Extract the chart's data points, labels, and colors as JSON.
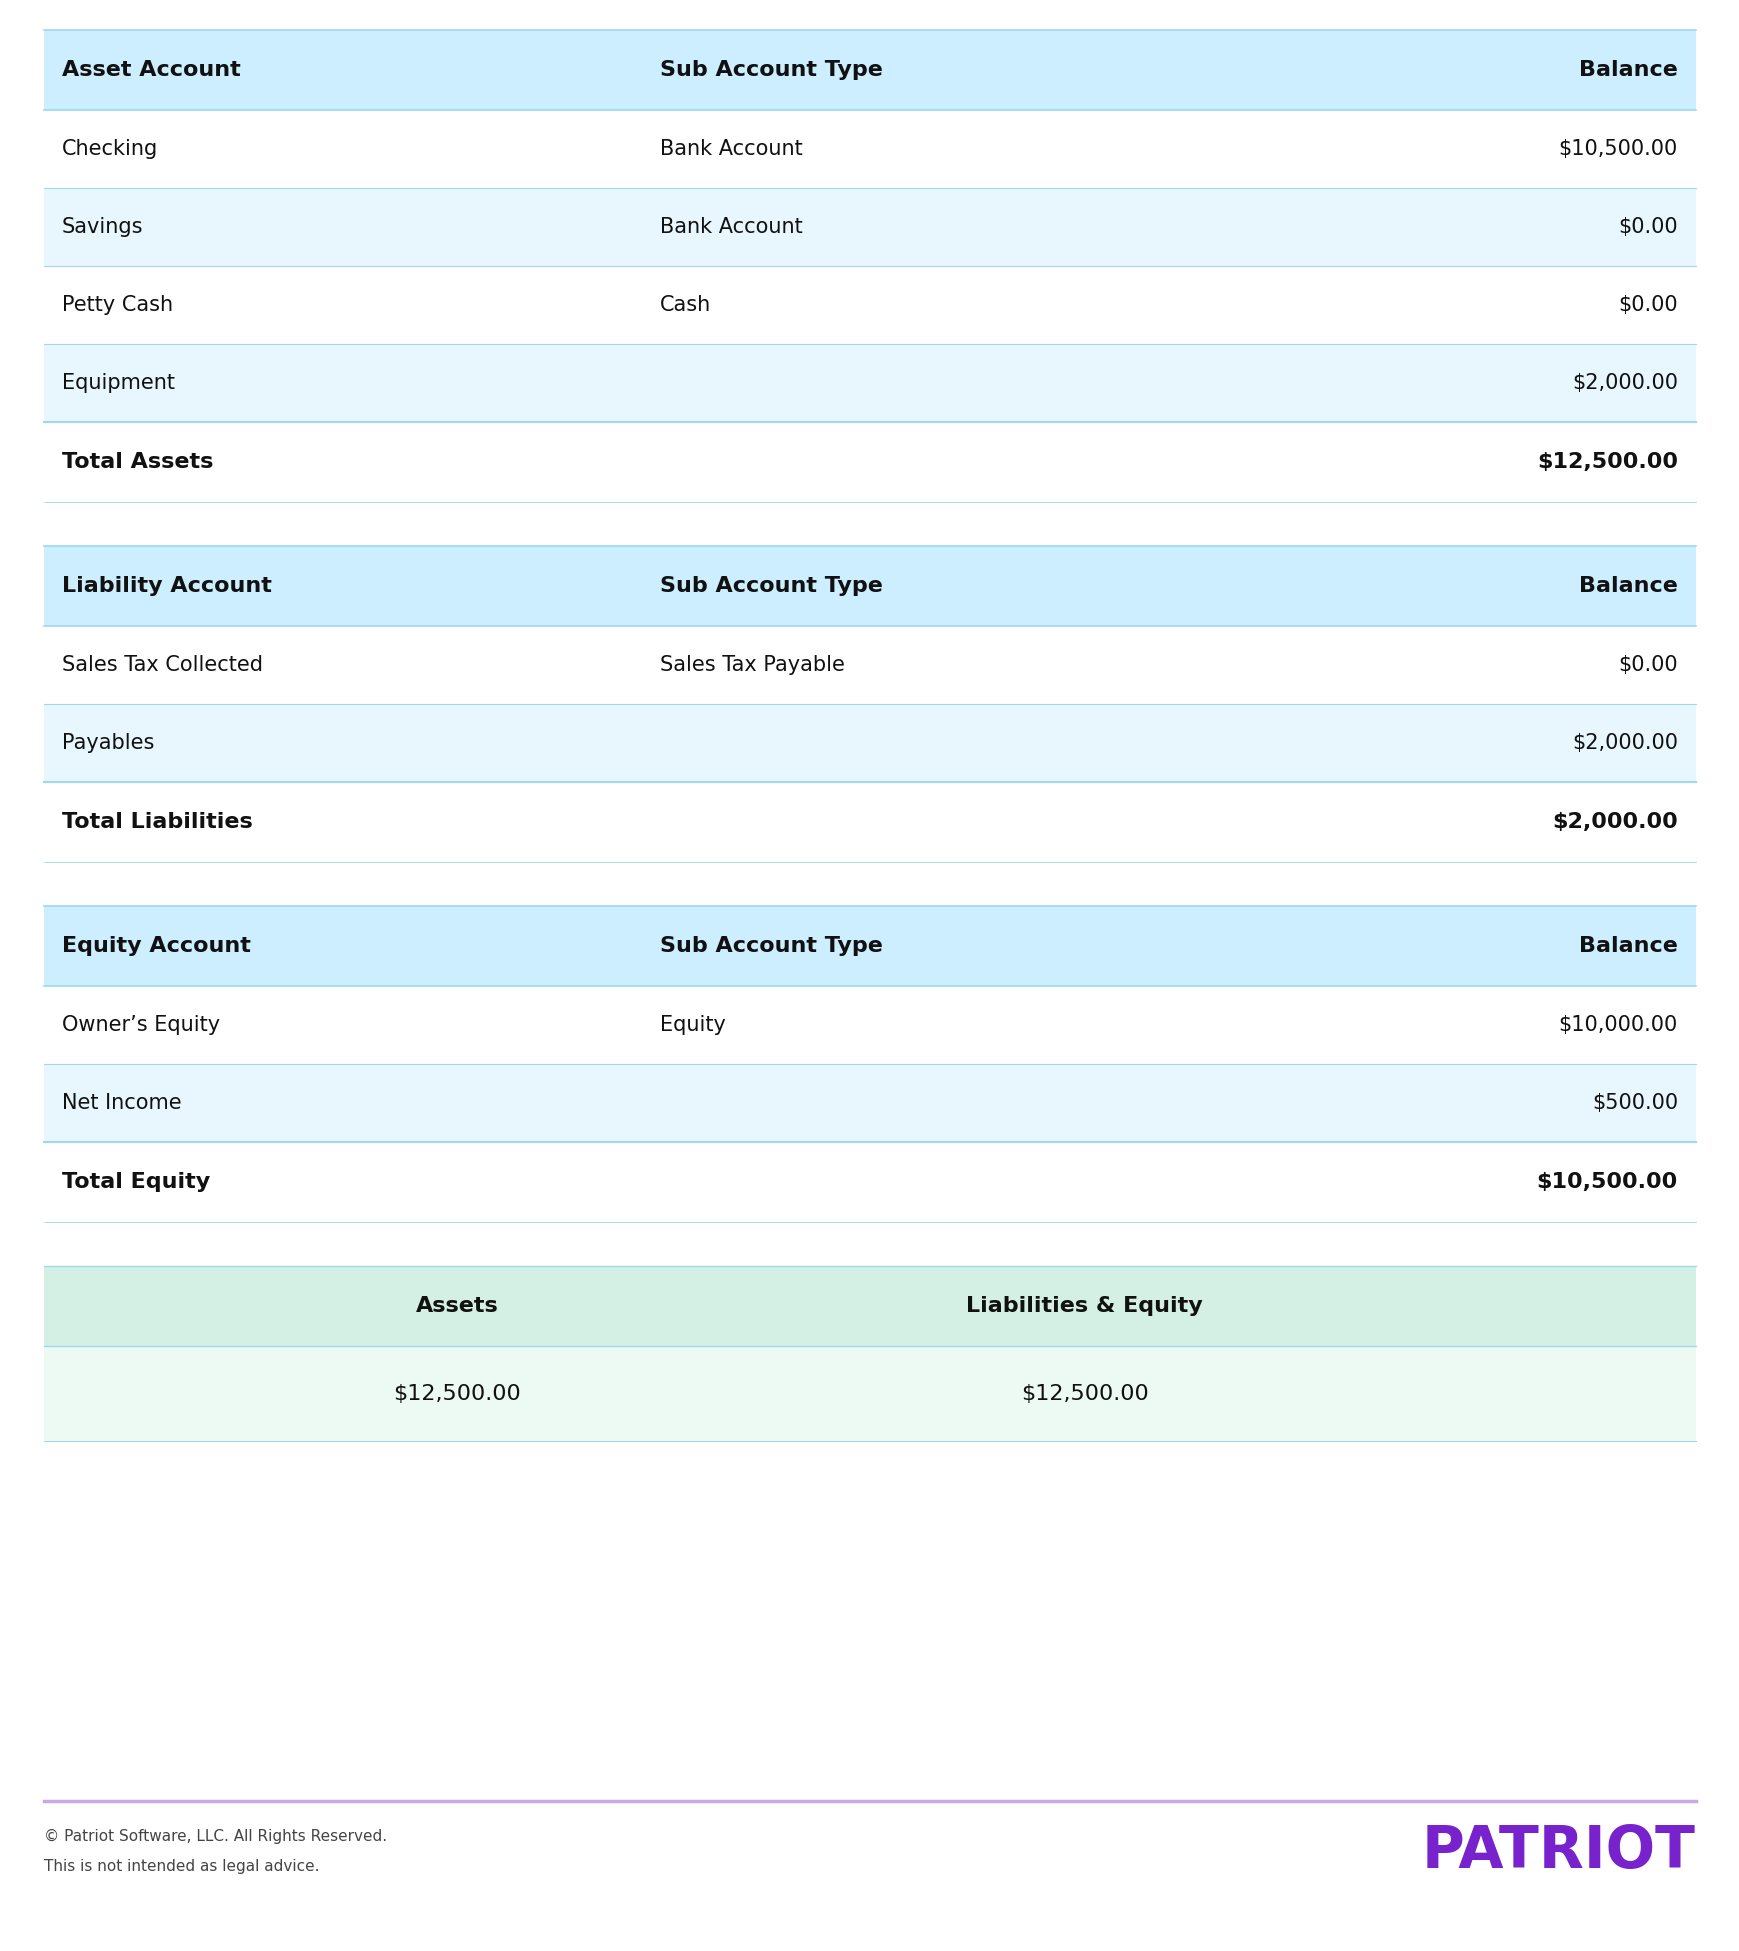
{
  "bg_color": "#ffffff",
  "header_bg": "#cceeff",
  "row_bg_alt": "#e8f7fd",
  "summary_header_bg": "#d4f0e4",
  "summary_val_bg": "#edfaf3",
  "divider_color": "#a0d8ef",
  "footer_divider_color": "#c8a8e8",
  "text_color": "#111111",
  "footer_text_color": "#444444",
  "patriot_color": "#7722cc",
  "asset_header": [
    "Asset Account",
    "Sub Account Type",
    "Balance"
  ],
  "asset_rows": [
    [
      "Checking",
      "Bank Account",
      "$10,500.00"
    ],
    [
      "Savings",
      "Bank Account",
      "$0.00"
    ],
    [
      "Petty Cash",
      "Cash",
      "$0.00"
    ],
    [
      "Equipment",
      "",
      "$2,000.00"
    ]
  ],
  "asset_total": [
    "Total Assets",
    "",
    "$12,500.00"
  ],
  "liability_header": [
    "Liability Account",
    "Sub Account Type",
    "Balance"
  ],
  "liability_rows": [
    [
      "Sales Tax Collected",
      "Sales Tax Payable",
      "$0.00"
    ],
    [
      "Payables",
      "",
      "$2,000.00"
    ]
  ],
  "liability_total": [
    "Total Liabilities",
    "",
    "$2,000.00"
  ],
  "equity_header": [
    "Equity Account",
    "Sub Account Type",
    "Balance"
  ],
  "equity_rows": [
    [
      "Owner’s Equity",
      "Equity",
      "$10,000.00"
    ],
    [
      "Net Income",
      "",
      "$500.00"
    ]
  ],
  "equity_total": [
    "Total Equity",
    "",
    "$10,500.00"
  ],
  "summary_header": [
    "Assets",
    "Liabilities & Equity"
  ],
  "summary_values": [
    "$12,500.00",
    "$12,500.00"
  ],
  "footer_line1": "© Patriot Software, LLC. All Rights Reserved.",
  "footer_line2": "This is not intended as legal advice.",
  "patriot_label": "PATRIOT"
}
